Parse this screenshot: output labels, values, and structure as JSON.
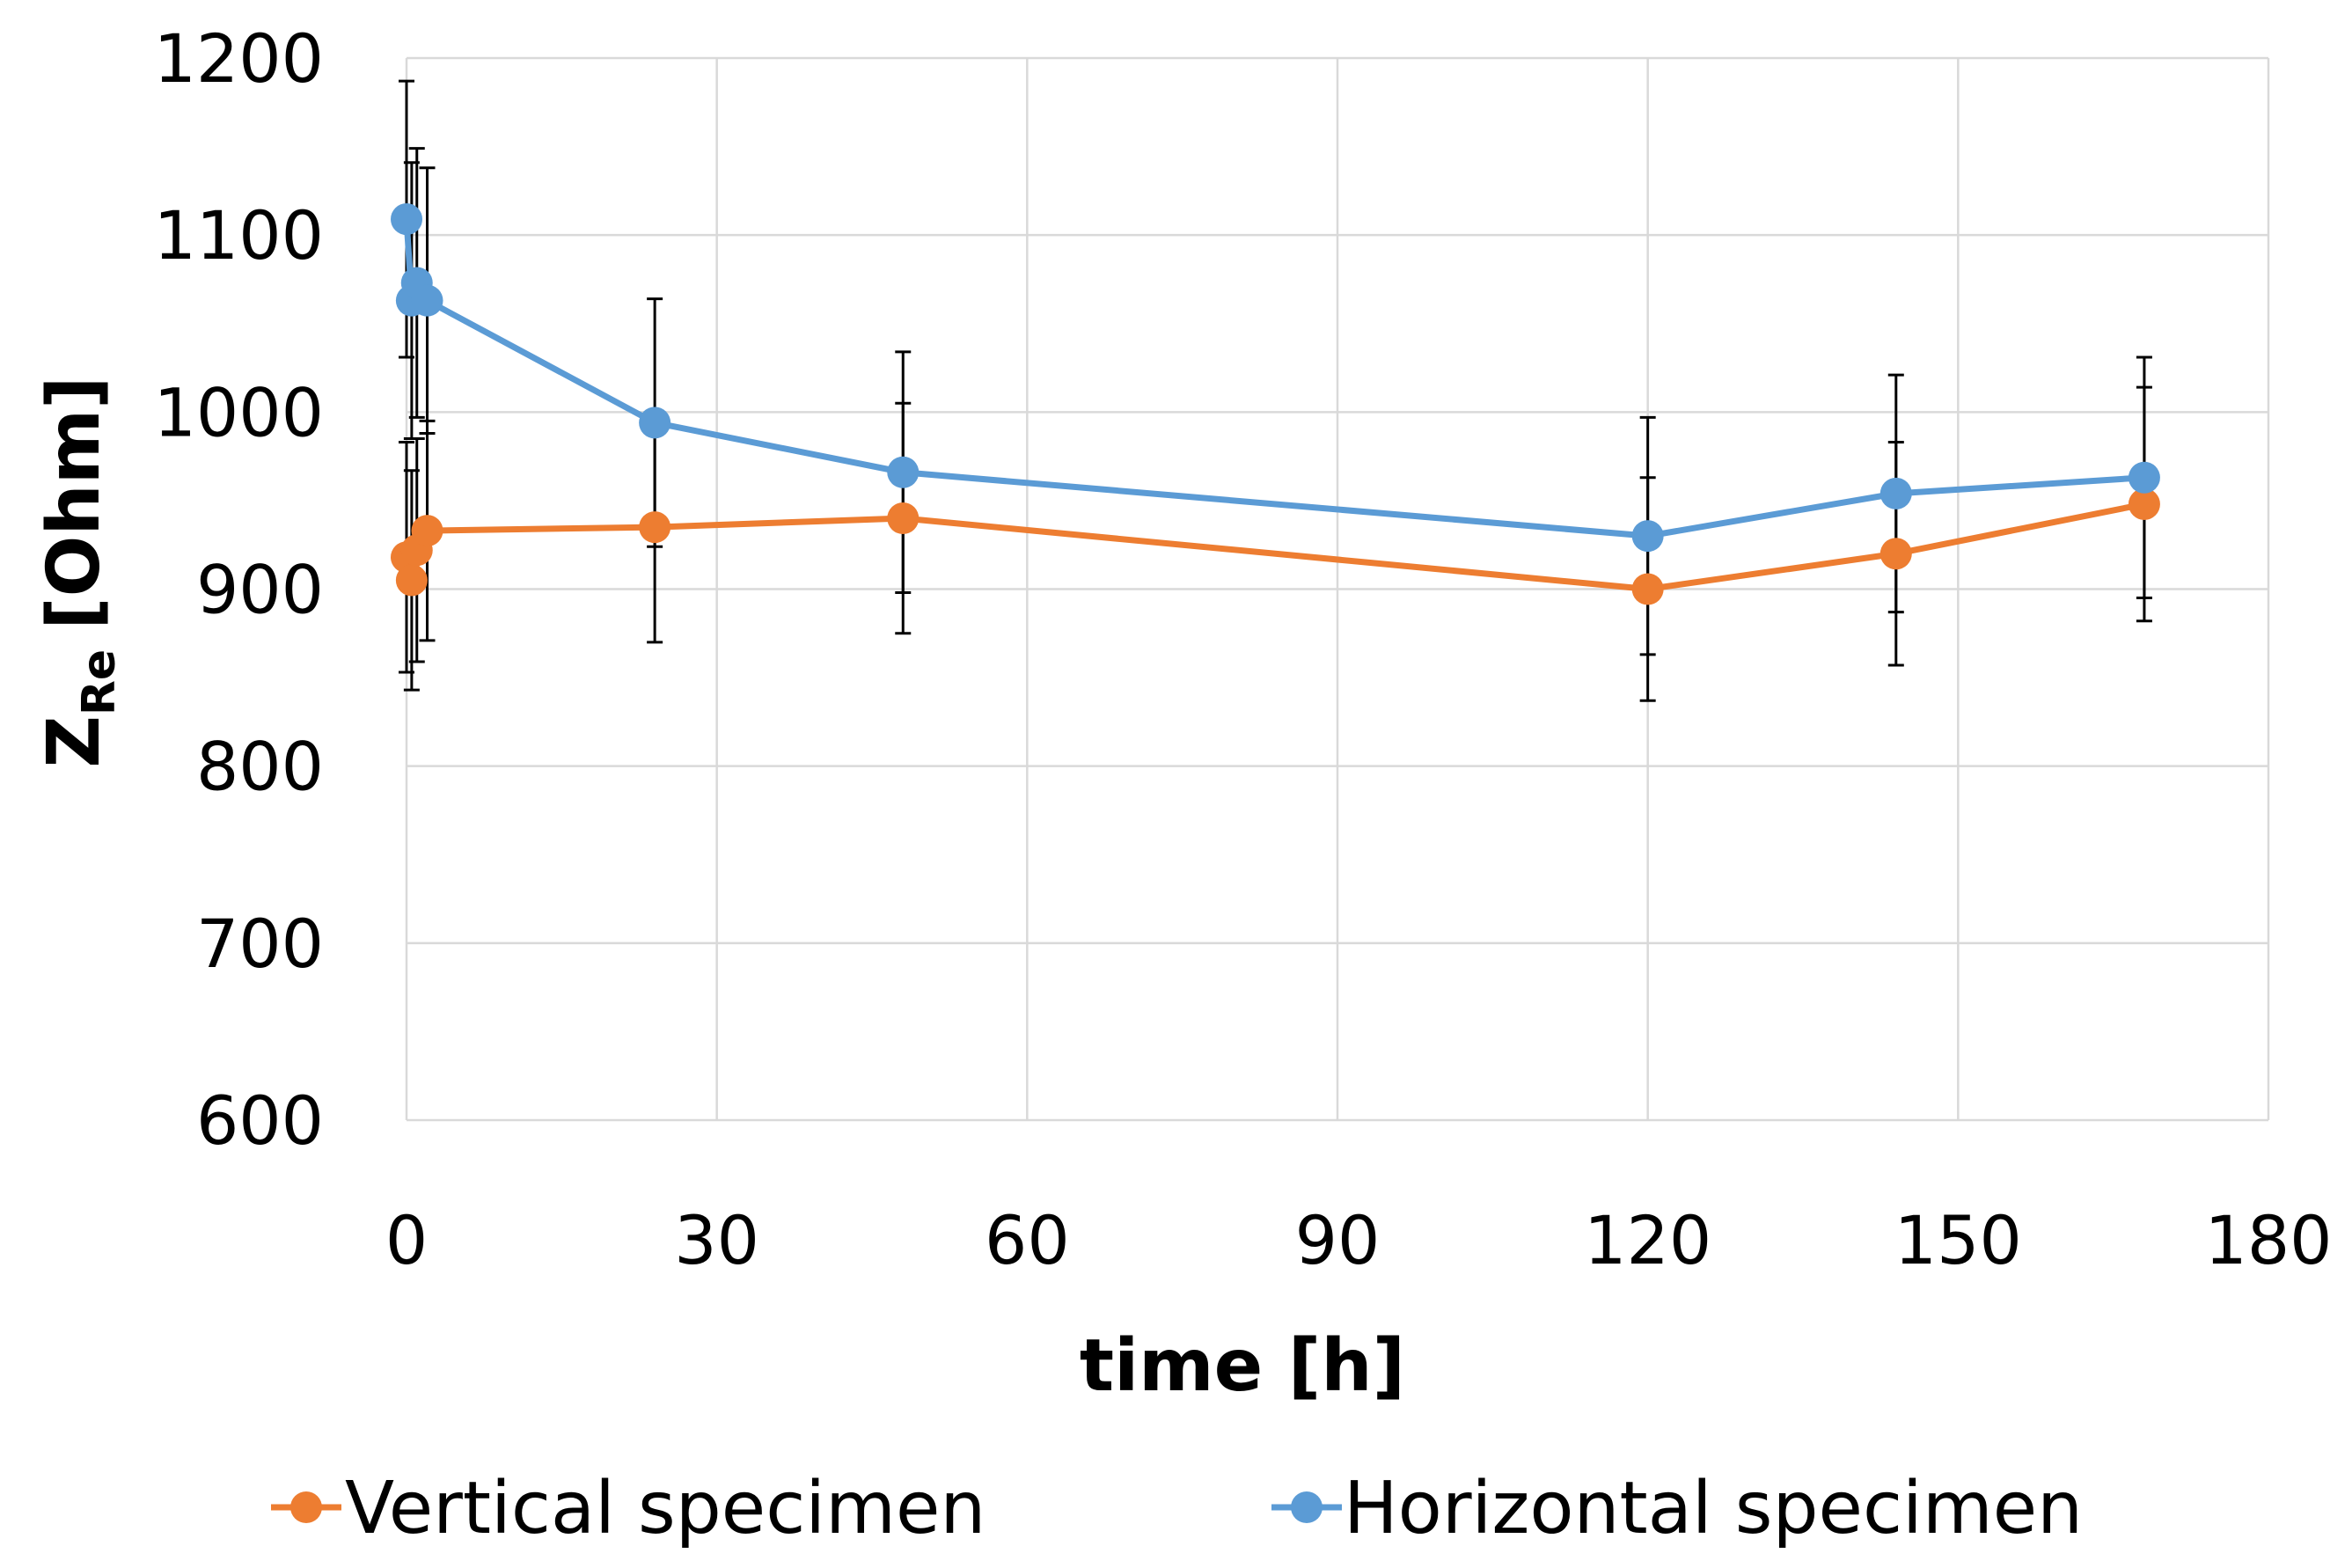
{
  "chart_data": {
    "type": "line",
    "xlabel": "time [h]",
    "ylabel_main": "Z",
    "ylabel_sub": "Re",
    "ylabel_unit": "[Ohm]",
    "xlim": [
      0,
      180
    ],
    "ylim": [
      600,
      1200
    ],
    "xticks": [
      0,
      30,
      60,
      90,
      120,
      150,
      180
    ],
    "yticks": [
      600,
      700,
      800,
      900,
      1000,
      1100,
      1200
    ],
    "grid": true,
    "legend_position": "bottom",
    "series": [
      {
        "name": "Vertical specimen",
        "color": "#ED7D31",
        "x": [
          0,
          0.5,
          1,
          2,
          24,
          48,
          120,
          144,
          168
        ],
        "y": [
          918,
          905,
          922,
          933,
          935,
          940,
          900,
          920,
          948
        ],
        "err": [
          65,
          62,
          63,
          62,
          65,
          65,
          63,
          63,
          66
        ]
      },
      {
        "name": "Horizontal specimen",
        "color": "#5B9BD5",
        "x": [
          0,
          0.5,
          1,
          2,
          24,
          48,
          120,
          144,
          168
        ],
        "y": [
          1109,
          1063,
          1073,
          1063,
          994,
          966,
          930,
          954,
          963
        ],
        "err": [
          78,
          78,
          76,
          75,
          70,
          68,
          67,
          67,
          68
        ]
      }
    ]
  }
}
